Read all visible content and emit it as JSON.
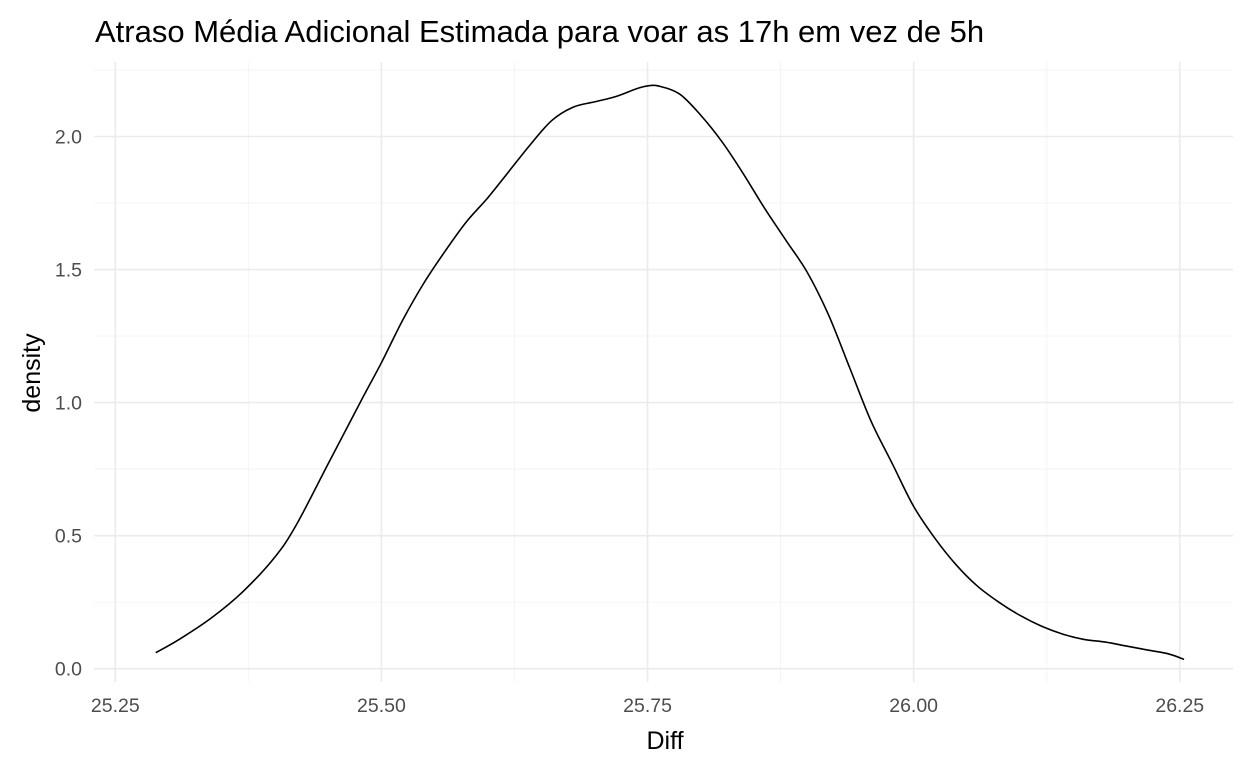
{
  "chart_data": {
    "type": "line",
    "title": "Atraso Média Adicional Estimada para voar as 17h em vez de 5h",
    "xlabel": "Diff",
    "ylabel": "density",
    "xlim": [
      25.23,
      26.3
    ],
    "ylim": [
      -0.05,
      2.28
    ],
    "x_ticks": [
      25.25,
      25.5,
      25.75,
      26.0,
      26.25
    ],
    "x_tick_labels": [
      "25.25",
      "25.50",
      "25.75",
      "26.00",
      "26.25"
    ],
    "y_ticks": [
      0.0,
      0.5,
      1.0,
      1.5,
      2.0
    ],
    "y_tick_labels": [
      "0.0",
      "0.5",
      "1.0",
      "1.5",
      "2.0"
    ],
    "grid": true,
    "legend": "none",
    "series": [
      {
        "color": "#000000",
        "x": [
          25.288,
          25.31,
          25.34,
          25.37,
          25.4,
          25.42,
          25.45,
          25.48,
          25.5,
          25.52,
          25.54,
          25.56,
          25.58,
          25.6,
          25.62,
          25.64,
          25.66,
          25.68,
          25.7,
          25.72,
          25.74,
          25.75,
          25.76,
          25.78,
          25.8,
          25.82,
          25.84,
          25.86,
          25.88,
          25.9,
          25.92,
          25.94,
          25.96,
          25.98,
          26.0,
          26.02,
          26.04,
          26.06,
          26.08,
          26.1,
          26.12,
          26.14,
          26.16,
          26.18,
          26.2,
          26.22,
          26.24,
          26.254
        ],
        "y": [
          0.06,
          0.11,
          0.19,
          0.29,
          0.42,
          0.54,
          0.77,
          1.0,
          1.15,
          1.31,
          1.45,
          1.57,
          1.68,
          1.77,
          1.87,
          1.97,
          2.06,
          2.11,
          2.13,
          2.15,
          2.18,
          2.19,
          2.19,
          2.16,
          2.08,
          1.98,
          1.86,
          1.73,
          1.61,
          1.49,
          1.33,
          1.13,
          0.93,
          0.77,
          0.61,
          0.49,
          0.39,
          0.31,
          0.25,
          0.2,
          0.16,
          0.13,
          0.11,
          0.1,
          0.085,
          0.07,
          0.055,
          0.035
        ]
      }
    ]
  }
}
